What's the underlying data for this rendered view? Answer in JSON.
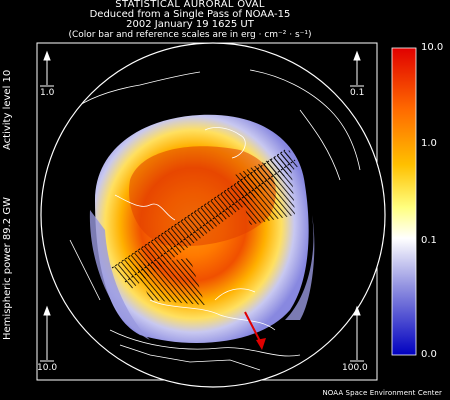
{
  "title": {
    "line1": "STATISTICAL AURORAL OVAL",
    "line2": "Deduced from a Single Pass of NOAA-15",
    "line3": "2002 January 19 1625 UT",
    "line4": "(Color bar and reference scales are in erg · cm⁻² · s⁻¹)"
  },
  "side_labels": {
    "activity": "Activity level 10",
    "power": "Hemispheric power  89.2 GW"
  },
  "reference_scales": {
    "top_left": "1.0",
    "top_right": "0.1",
    "bottom_left": "10.0",
    "bottom_right": "100.0"
  },
  "colorbar": {
    "ticks": [
      "10.0",
      "1.0",
      "0.1",
      "0.0"
    ],
    "colors": [
      "#e00000",
      "#ff7000",
      "#ffd000",
      "#ffffff",
      "#8080e0",
      "#0000c0"
    ]
  },
  "footer": "NOAA Space Environment Center",
  "colors": {
    "background": "#000000",
    "frame": "#ffffff",
    "arrow": "#e00000"
  }
}
